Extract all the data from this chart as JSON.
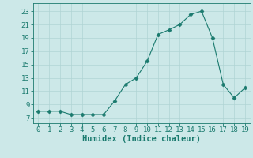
{
  "x": [
    0,
    1,
    2,
    3,
    4,
    5,
    6,
    7,
    8,
    9,
    10,
    11,
    12,
    13,
    14,
    15,
    16,
    17,
    18,
    19
  ],
  "y": [
    8.0,
    8.0,
    8.0,
    7.5,
    7.5,
    7.5,
    7.5,
    9.5,
    12.0,
    13.0,
    15.5,
    19.5,
    20.2,
    21.0,
    22.5,
    23.0,
    19.0,
    12.0,
    10.0,
    11.5
  ],
  "line_color": "#1a7a6e",
  "marker": "D",
  "marker_size": 2.5,
  "background_color": "#cce8e8",
  "grid_color": "#b0d4d4",
  "xlabel": "Humidex (Indice chaleur)",
  "yticks": [
    7,
    9,
    11,
    13,
    15,
    17,
    19,
    21,
    23
  ],
  "ylim": [
    6.2,
    24.2
  ],
  "xlim": [
    -0.5,
    19.5
  ],
  "xticks": [
    0,
    1,
    2,
    3,
    4,
    5,
    6,
    7,
    8,
    9,
    10,
    11,
    12,
    13,
    14,
    15,
    16,
    17,
    18,
    19
  ],
  "tick_color": "#1a7a6e",
  "tick_fontsize": 6.5,
  "label_fontsize": 7.5
}
